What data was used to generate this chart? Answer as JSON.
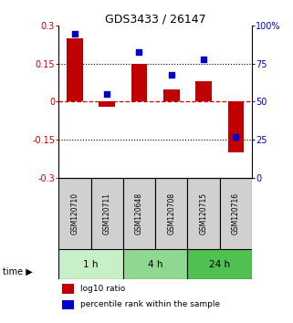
{
  "title": "GDS3433 / 26147",
  "samples": [
    "GSM120710",
    "GSM120711",
    "GSM120648",
    "GSM120708",
    "GSM120715",
    "GSM120716"
  ],
  "log10_ratio": [
    0.25,
    -0.02,
    0.15,
    0.05,
    0.08,
    -0.2
  ],
  "percentile_rank": [
    95,
    55,
    83,
    68,
    78,
    27
  ],
  "ylim_left": [
    -0.3,
    0.3
  ],
  "ylim_right": [
    0,
    100
  ],
  "yticks_left": [
    -0.3,
    -0.15,
    0,
    0.15,
    0.3
  ],
  "yticks_right": [
    0,
    25,
    50,
    75,
    100
  ],
  "ytick_labels_left": [
    "-0.3",
    "-0.15",
    "0",
    "0.15",
    "0.3"
  ],
  "ytick_labels_right": [
    "0",
    "25",
    "50",
    "75",
    "100%"
  ],
  "groups": [
    {
      "label": "1 h",
      "indices": [
        0,
        1
      ],
      "color": "#c8f0c8"
    },
    {
      "label": "4 h",
      "indices": [
        2,
        3
      ],
      "color": "#90d890"
    },
    {
      "label": "24 h",
      "indices": [
        4,
        5
      ],
      "color": "#50c050"
    }
  ],
  "bar_color": "#c00000",
  "dot_color": "#0000cc",
  "bar_width": 0.5,
  "dot_size": 25,
  "hline_color": "#cc0000",
  "hline_style": "--",
  "grid_style": ":",
  "grid_color": "#000000",
  "sample_box_color": "#d0d0d0",
  "legend_bar_label": "log10 ratio",
  "legend_dot_label": "percentile rank within the sample",
  "left_tick_color": "#cc0000",
  "right_tick_color": "#0000cc",
  "background_color": "#ffffff"
}
